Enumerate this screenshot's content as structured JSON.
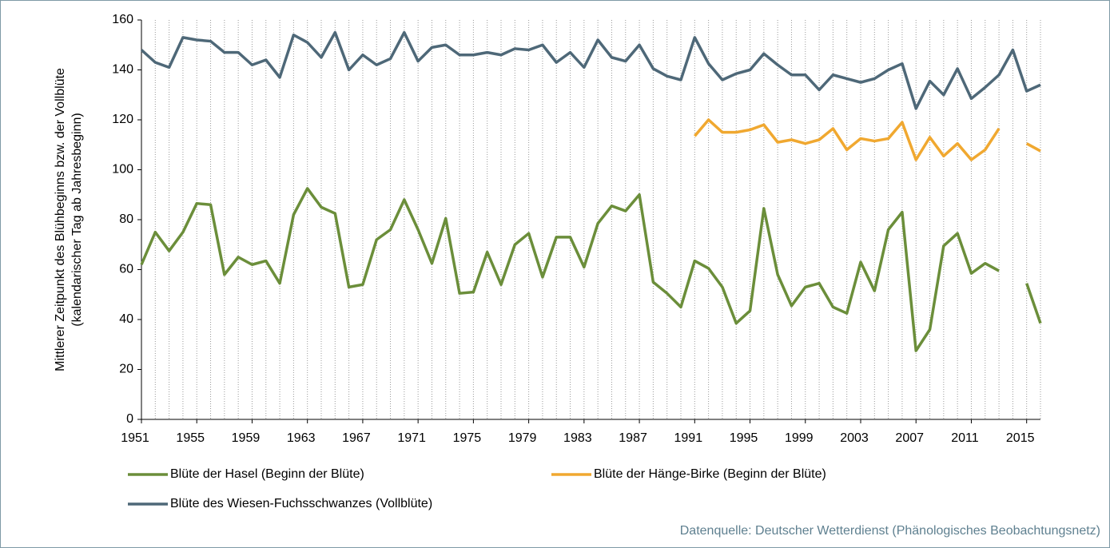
{
  "chart_data": {
    "type": "line",
    "y_label": [
      "Mittlerer Zeitpunkt des  Blühbeginns bzw. der Vollblüte",
      "(kalendarischer Tag ab Jahresbeginn)"
    ],
    "source": "Datenquelle: Deutscher Wetterdienst (Phänologisches Beobachtungsnetz)",
    "x": [
      1951,
      1952,
      1953,
      1954,
      1955,
      1956,
      1957,
      1958,
      1959,
      1960,
      1961,
      1962,
      1963,
      1964,
      1965,
      1966,
      1967,
      1968,
      1969,
      1970,
      1971,
      1972,
      1973,
      1974,
      1975,
      1976,
      1977,
      1978,
      1979,
      1980,
      1981,
      1982,
      1983,
      1984,
      1985,
      1986,
      1987,
      1988,
      1989,
      1990,
      1991,
      1992,
      1993,
      1994,
      1995,
      1996,
      1997,
      1998,
      1999,
      2000,
      2001,
      2002,
      2003,
      2004,
      2005,
      2006,
      2007,
      2008,
      2009,
      2010,
      2011,
      2012,
      2013,
      2014,
      2015,
      2016
    ],
    "xlim": [
      1951,
      2016
    ],
    "xticks": [
      1951,
      1955,
      1959,
      1963,
      1967,
      1971,
      1975,
      1979,
      1983,
      1987,
      1991,
      1995,
      1999,
      2003,
      2007,
      2011,
      2015
    ],
    "ylim": [
      0,
      160
    ],
    "yticks": [
      0,
      20,
      40,
      60,
      80,
      100,
      120,
      140,
      160
    ],
    "vertical_grid": true,
    "series": [
      {
        "name": "Blüte der Hasel (Beginn der Blüte)",
        "color": "#6b8e3a",
        "values": [
          62,
          75,
          67.5,
          75,
          86.5,
          86,
          58,
          65,
          62,
          63.5,
          54.5,
          82,
          92.5,
          85,
          82.5,
          53,
          54,
          72,
          76,
          88,
          76,
          62.5,
          80.5,
          50.5,
          51,
          67,
          54,
          70,
          74.5,
          57,
          73,
          73,
          61,
          78.5,
          85.5,
          83.5,
          90,
          55,
          50.5,
          45,
          63.5,
          60.5,
          53,
          38.5,
          43.5,
          84.5,
          58,
          45.5,
          53,
          54.5,
          45,
          42.5,
          63,
          51.5,
          76,
          83,
          27.5,
          36,
          69.5,
          74.5,
          58.5,
          62.5,
          59.5,
          null,
          54.5,
          38.5
        ]
      },
      {
        "name": "Blüte der Hänge-Birke (Beginn der Blüte)",
        "color": "#f0a830",
        "values": [
          null,
          null,
          null,
          null,
          null,
          null,
          null,
          null,
          null,
          null,
          null,
          null,
          null,
          null,
          null,
          null,
          null,
          null,
          null,
          null,
          null,
          null,
          null,
          null,
          null,
          null,
          null,
          null,
          null,
          null,
          null,
          null,
          null,
          null,
          null,
          null,
          null,
          null,
          null,
          null,
          113.5,
          120,
          115,
          115,
          116,
          118,
          111,
          112,
          110.5,
          112,
          116.5,
          108,
          112.5,
          111.5,
          112.5,
          119,
          104,
          113,
          105.5,
          110.5,
          104,
          108,
          116.5,
          null,
          110.5,
          107.5
        ]
      },
      {
        "name": "Blüte des Wiesen-Fuchsschwanzes (Vollblüte)",
        "color": "#4e6878",
        "values": [
          148,
          143,
          141,
          153,
          152,
          151.5,
          147,
          147,
          142,
          144,
          137,
          154,
          151,
          145,
          155,
          140,
          146,
          142,
          144.5,
          155,
          143.5,
          149,
          150,
          146,
          146,
          147,
          146,
          148.5,
          148,
          150,
          143,
          147,
          141,
          152,
          145,
          143.5,
          150,
          140.5,
          137.5,
          136,
          153,
          142.5,
          136,
          138.5,
          140,
          146.5,
          142,
          138,
          138,
          132,
          138,
          136.5,
          135,
          136.5,
          140,
          142.5,
          124.5,
          135.5,
          130,
          140.5,
          128.5,
          133,
          138,
          148,
          131.5,
          134
        ]
      }
    ]
  }
}
